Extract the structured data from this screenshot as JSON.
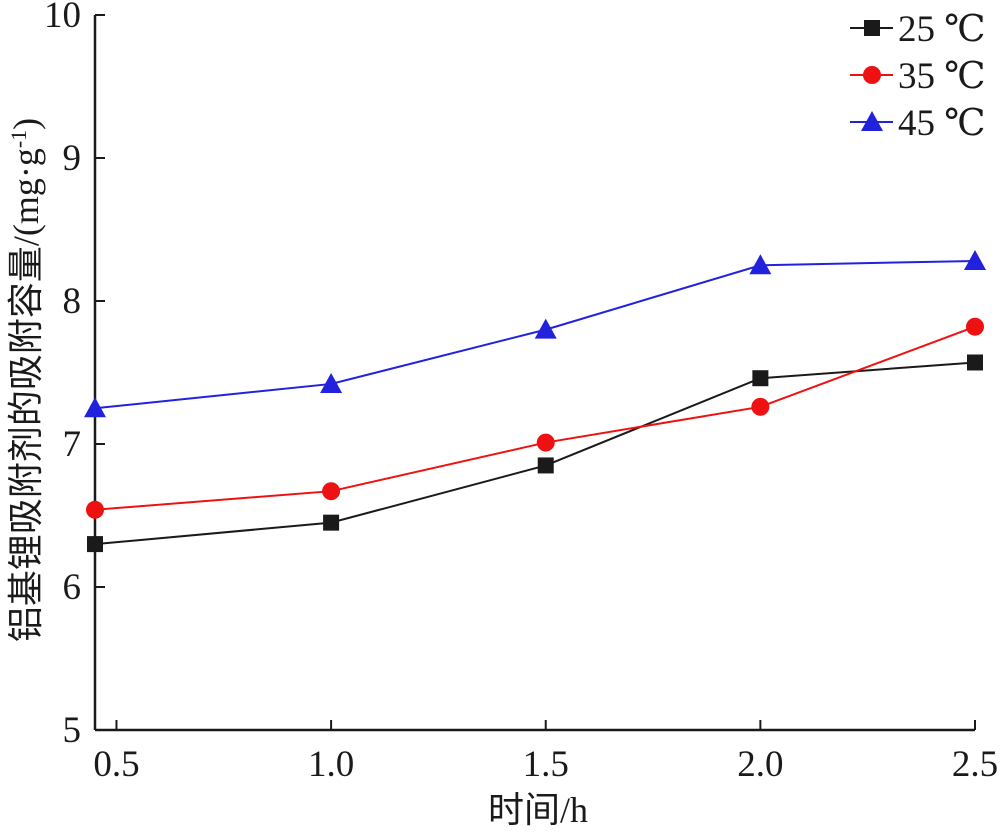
{
  "chart_data": {
    "type": "line",
    "xlabel": "时间/h",
    "ylabel": "铝基锂吸附剂的吸附容量/(mg·g",
    "ylabel_sup": "-1",
    "ylabel_tail": ")",
    "xlim": [
      0.45,
      2.5
    ],
    "ylim": [
      5,
      10
    ],
    "x_ticks": [
      0.5,
      1.0,
      1.5,
      2.0,
      2.5
    ],
    "x_tick_labels": [
      "0.5",
      "1.0",
      "1.5",
      "2.0",
      "2.5"
    ],
    "y_ticks": [
      5,
      6,
      7,
      8,
      9,
      10
    ],
    "y_tick_labels": [
      "5",
      "6",
      "7",
      "8",
      "9",
      "10"
    ],
    "x": [
      0.45,
      1.0,
      1.5,
      2.0,
      2.5
    ],
    "legend_position": "top-right",
    "grid": false,
    "series": [
      {
        "name": "25 ℃",
        "marker": "square",
        "color": "#1a1a1a",
        "values": [
          6.3,
          6.45,
          6.85,
          7.46,
          7.57
        ]
      },
      {
        "name": "35 ℃",
        "marker": "circle",
        "color": "#ee1111",
        "values": [
          6.54,
          6.67,
          7.01,
          7.26,
          7.82
        ]
      },
      {
        "name": "45 ℃",
        "marker": "triangle",
        "color": "#2222dd",
        "values": [
          7.25,
          7.42,
          7.8,
          8.25,
          8.28
        ]
      }
    ]
  }
}
